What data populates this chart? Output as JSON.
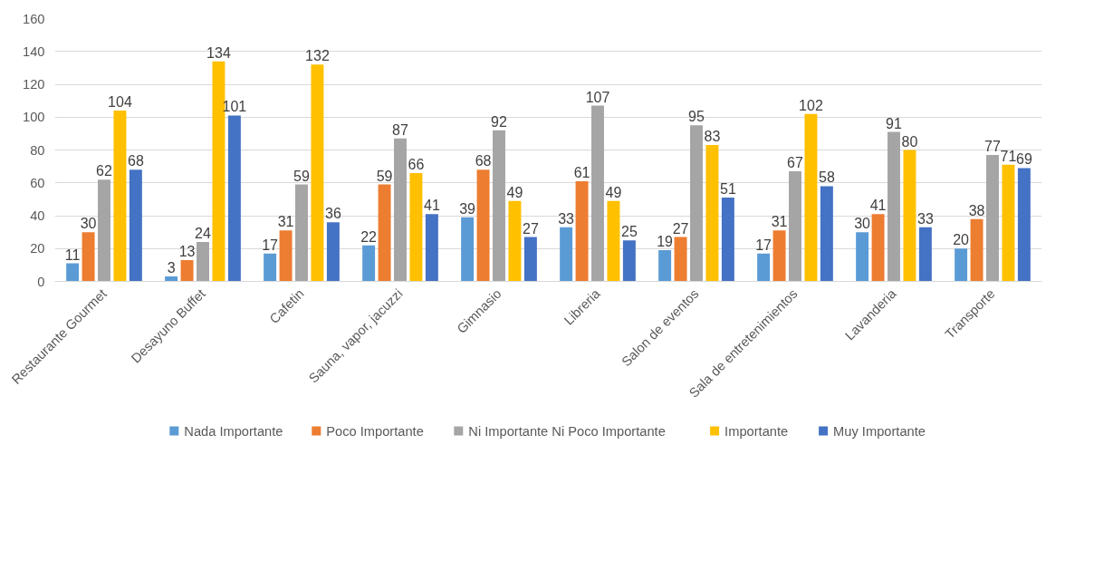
{
  "chart_data": {
    "type": "bar",
    "categories": [
      "Restaurante Gourmet",
      "Desayuno Buffet",
      "Cafetin",
      "Sauna, vapor, jacuzzi",
      "Gimnasio",
      "Libreria",
      "Salon de eventos",
      "Sala de entretenimientos",
      "Lavanderia",
      "Transporte"
    ],
    "series": [
      {
        "name": "Nada Importante",
        "color": "#5b9bd5",
        "values": [
          11,
          3,
          17,
          22,
          39,
          33,
          19,
          17,
          30,
          20
        ]
      },
      {
        "name": "Poco Importante",
        "color": "#ed7d31",
        "values": [
          30,
          13,
          31,
          59,
          68,
          61,
          27,
          31,
          41,
          38
        ]
      },
      {
        "name": "Ni Importante Ni Poco Importante",
        "color": "#a5a5a5",
        "values": [
          62,
          24,
          59,
          87,
          92,
          107,
          95,
          67,
          91,
          77
        ]
      },
      {
        "name": "Importante",
        "color": "#ffc000",
        "values": [
          104,
          134,
          132,
          66,
          49,
          49,
          83,
          102,
          80,
          71
        ]
      },
      {
        "name": "Muy Importante",
        "color": "#4472c4",
        "values": [
          68,
          101,
          36,
          41,
          27,
          25,
          51,
          58,
          33,
          69
        ]
      }
    ],
    "ylim": [
      0,
      160
    ],
    "yticks": [
      0,
      20,
      40,
      60,
      80,
      100,
      120,
      140,
      160
    ],
    "grid": "y",
    "legend": "bottom",
    "data_labels": true
  }
}
